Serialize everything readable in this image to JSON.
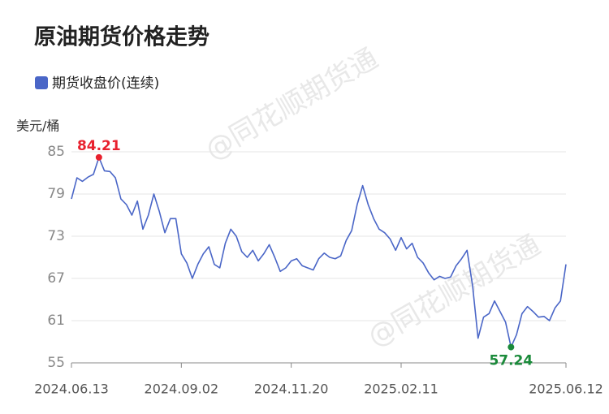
{
  "chart_data": {
    "type": "line",
    "title": "原油期货价格走势",
    "y_label": "美元/桶",
    "watermark": "@同花顺期货通",
    "categories": [
      "2024.06.13",
      null,
      null,
      null,
      null,
      null,
      null,
      null,
      null,
      null,
      null,
      null,
      null,
      null,
      null,
      null,
      null,
      null,
      null,
      null,
      "2024.09.02",
      null,
      null,
      null,
      null,
      null,
      null,
      null,
      null,
      null,
      null,
      null,
      null,
      null,
      null,
      null,
      null,
      null,
      null,
      null,
      "2024.11.20",
      null,
      null,
      null,
      null,
      null,
      null,
      null,
      null,
      null,
      null,
      null,
      null,
      null,
      null,
      null,
      null,
      null,
      null,
      null,
      "2025.02.11",
      null,
      null,
      null,
      null,
      null,
      null,
      null,
      null,
      null,
      null,
      null,
      null,
      null,
      null,
      null,
      null,
      null,
      null,
      null,
      null,
      null,
      null,
      null,
      null,
      null,
      null,
      null,
      null,
      null,
      "2025.06.12"
    ],
    "series": [
      {
        "name": "期货收盘价(连续)",
        "color": "#4a66c7",
        "values": [
          78.3,
          81.3,
          80.8,
          81.4,
          81.8,
          84.21,
          82.3,
          82.2,
          81.3,
          78.3,
          77.5,
          76,
          78,
          74,
          76,
          79,
          76.5,
          73.5,
          75.5,
          75.5,
          70.5,
          69.2,
          67,
          69,
          70.5,
          71.5,
          69,
          68.5,
          72,
          74,
          73,
          70.8,
          70,
          71,
          69.5,
          70.5,
          71.8,
          70,
          68,
          68.5,
          69.5,
          69.8,
          68.8,
          68.5,
          68.2,
          69.8,
          70.6,
          70,
          69.8,
          70.2,
          72.4,
          73.8,
          77.5,
          80.2,
          77.5,
          75.5,
          74,
          73.5,
          72.6,
          71,
          72.8,
          71.2,
          72,
          70,
          69.2,
          67.8,
          66.8,
          67.3,
          67,
          67.2,
          68.8,
          69.8,
          71,
          66,
          58.5,
          61.5,
          62,
          63.8,
          62.3,
          60.8,
          57.24,
          59,
          62,
          63,
          62.3,
          61.5,
          61.6,
          61,
          62.8,
          63.8,
          69
        ]
      }
    ],
    "ylim": [
      55,
      85
    ],
    "yticks": [
      55,
      61,
      67,
      73,
      79,
      85
    ],
    "grid": true,
    "max_color": "#e8212e",
    "min_color": "#1a8a3a"
  }
}
